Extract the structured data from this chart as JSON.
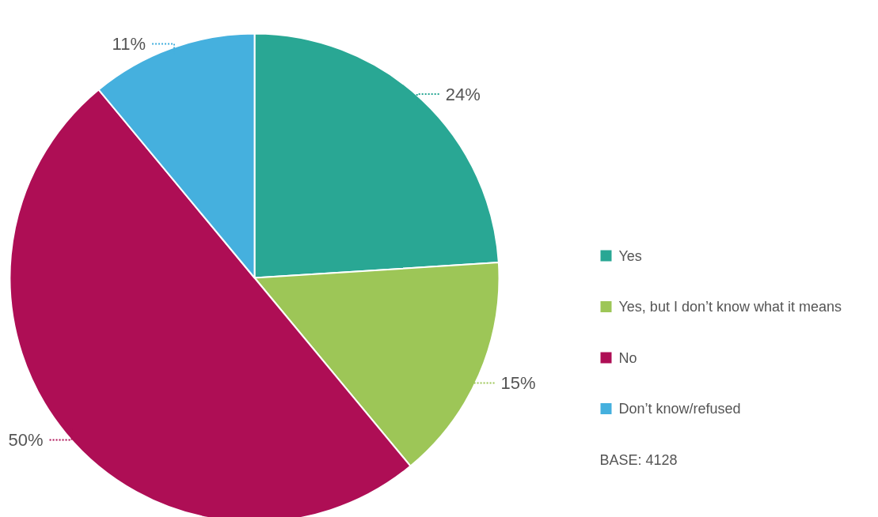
{
  "chart_data": {
    "type": "pie",
    "categories": [
      "Yes",
      "Yes, but I don’t know what it means",
      "No",
      "Don’t know/refused"
    ],
    "values": [
      24,
      15,
      50,
      11
    ],
    "value_labels": [
      "24%",
      "15%",
      "50%",
      "11%"
    ],
    "colors": [
      "#29a794",
      "#9dc657",
      "#ae0e55",
      "#45b0de"
    ],
    "legend": "right",
    "annotations": [
      "BASE: 4128"
    ]
  }
}
